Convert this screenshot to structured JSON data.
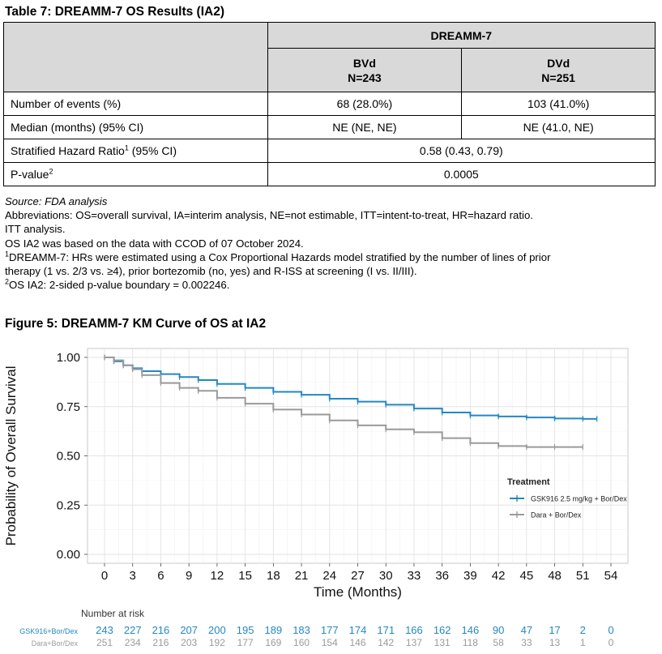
{
  "table": {
    "title": "Table 7: DREAMM-7 OS Results (IA2)",
    "group_header": "DREAMM-7",
    "arms": [
      {
        "name": "BVd",
        "n": "N=243"
      },
      {
        "name": "DVd",
        "n": "N=251"
      }
    ],
    "rows": [
      {
        "label": "Number of events (%)",
        "bvd": "68 (28.0%)",
        "dvd": "103 (41.0%)"
      },
      {
        "label": "Median (months) (95% CI)",
        "bvd": "NE (NE, NE)",
        "dvd": "NE (41.0, NE)"
      }
    ],
    "hr_row": {
      "label": "Stratified Hazard Ratio",
      "sup": "1",
      "label_tail": " (95% CI)",
      "value": "0.58 (0.43, 0.79)"
    },
    "p_row": {
      "label": "P-value",
      "sup": "2",
      "value": "0.0005"
    }
  },
  "notes": {
    "source": "Source: FDA analysis",
    "abbreviations": "Abbreviations: OS=overall survival, IA=interim analysis, NE=not estimable, ITT=intent-to-treat, HR=hazard ratio.",
    "itt": "ITT analysis.",
    "ccod": "OS IA2 was based on the data with CCOD of 07 October 2024.",
    "fn1_mark": "1",
    "fn1_line1": "DREAMM-7: HRs were estimated using a Cox Proportional Hazards model stratified by the number of lines of prior",
    "fn1_line2": "therapy (1 vs. 2/3 vs. ≥4), prior bortezomib (no, yes) and R-ISS at screening (I vs. II/III).",
    "fn2_mark": "2",
    "fn2": "OS IA2: 2-sided p-value boundary = 0.002246."
  },
  "figure": {
    "title": "Figure 5: DREAMM-7 KM Curve of OS at IA2"
  },
  "colors": {
    "gsk": "#2388c4",
    "dara": "#9a9a9a",
    "header_bg": "#d9d9d9"
  },
  "chart_data": {
    "type": "line",
    "xlabel": "Time (Months)",
    "ylabel": "Probability of Overall Survival",
    "xlim": [
      0,
      54
    ],
    "ylim": [
      0,
      1
    ],
    "x_ticks": [
      0,
      3,
      6,
      9,
      12,
      15,
      18,
      21,
      24,
      27,
      30,
      33,
      36,
      39,
      42,
      45,
      48,
      51,
      54
    ],
    "y_ticks": [
      0.0,
      0.25,
      0.5,
      0.75,
      1.0
    ],
    "y_tick_labels": [
      "0.00",
      "0.25",
      "0.50",
      "0.75",
      "1.00"
    ],
    "grid": true,
    "legend": {
      "title": "Treatment",
      "position": "right"
    },
    "series": [
      {
        "name": "GSK916 2.5 mg/kg + Bor/Dex",
        "x": [
          0,
          1,
          2,
          3,
          4,
          6,
          8,
          10,
          12,
          15,
          18,
          21,
          24,
          27,
          30,
          33,
          36,
          39,
          42,
          45,
          48,
          51,
          52.5
        ],
        "y": [
          1.0,
          0.98,
          0.96,
          0.945,
          0.93,
          0.915,
          0.9,
          0.885,
          0.865,
          0.845,
          0.825,
          0.81,
          0.79,
          0.775,
          0.76,
          0.74,
          0.72,
          0.705,
          0.7,
          0.695,
          0.69,
          0.688,
          0.688
        ]
      },
      {
        "name": "Dara + Bor/Dex",
        "x": [
          0,
          1,
          2,
          3,
          4,
          6,
          8,
          10,
          12,
          15,
          18,
          21,
          24,
          27,
          30,
          33,
          36,
          39,
          42,
          45,
          48,
          51
        ],
        "y": [
          1.0,
          0.985,
          0.96,
          0.94,
          0.91,
          0.87,
          0.845,
          0.83,
          0.795,
          0.765,
          0.735,
          0.71,
          0.68,
          0.655,
          0.635,
          0.62,
          0.59,
          0.565,
          0.55,
          0.545,
          0.545,
          0.545
        ]
      }
    ],
    "risk_table": {
      "title": "Number at risk",
      "rows": [
        {
          "label": "GSK916+Bor/Dex",
          "counts": [
            "243",
            "227",
            "216",
            "207",
            "200",
            "195",
            "189",
            "183",
            "177",
            "174",
            "171",
            "166",
            "162",
            "146",
            "90",
            "47",
            "17",
            "2",
            "0"
          ]
        },
        {
          "label": "Dara+Bor/Dex",
          "counts": [
            "251",
            "234",
            "216",
            "203",
            "192",
            "177",
            "169",
            "160",
            "154",
            "146",
            "142",
            "137",
            "131",
            "118",
            "58",
            "33",
            "13",
            "1",
            "0"
          ]
        }
      ]
    }
  }
}
